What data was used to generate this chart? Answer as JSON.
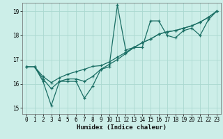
{
  "title": "",
  "xlabel": "Humidex (Indice chaleur)",
  "bg_color": "#cceee8",
  "grid_color": "#aad8d0",
  "line_color": "#1a6e64",
  "xlim": [
    -0.5,
    23.5
  ],
  "ylim": [
    14.75,
    19.35
  ],
  "xticks": [
    0,
    1,
    2,
    3,
    4,
    5,
    6,
    7,
    8,
    9,
    10,
    11,
    12,
    13,
    14,
    15,
    16,
    17,
    18,
    19,
    20,
    21,
    22,
    23
  ],
  "yticks": [
    15,
    16,
    17,
    18,
    19
  ],
  "line1_x": [
    0,
    1,
    2,
    3,
    4,
    5,
    6,
    7,
    8,
    9,
    10,
    11,
    12,
    13,
    14,
    15,
    16,
    17,
    18,
    19,
    20,
    21,
    22,
    23
  ],
  "line1_y": [
    16.7,
    16.7,
    16.1,
    15.1,
    16.1,
    16.1,
    16.1,
    15.4,
    15.9,
    16.6,
    16.7,
    19.25,
    17.4,
    17.5,
    17.5,
    18.6,
    18.6,
    18.0,
    17.9,
    18.2,
    18.3,
    18.0,
    18.65,
    19.0
  ],
  "line2_x": [
    0,
    1,
    2,
    3,
    4,
    5,
    6,
    7,
    8,
    9,
    10,
    11,
    12,
    13,
    14,
    15,
    16,
    17,
    18,
    19,
    20,
    21,
    22,
    23
  ],
  "line2_y": [
    16.7,
    16.7,
    16.3,
    16.05,
    16.25,
    16.4,
    16.5,
    16.6,
    16.72,
    16.75,
    16.9,
    17.1,
    17.3,
    17.5,
    17.7,
    17.85,
    18.05,
    18.15,
    18.2,
    18.3,
    18.4,
    18.55,
    18.75,
    19.0
  ],
  "line3_x": [
    0,
    1,
    2,
    3,
    4,
    5,
    6,
    7,
    8,
    9,
    10,
    11,
    12,
    13,
    14,
    15,
    16,
    17,
    18,
    19,
    20,
    21,
    22,
    23
  ],
  "line3_y": [
    16.7,
    16.7,
    16.2,
    15.8,
    16.1,
    16.2,
    16.2,
    16.1,
    16.3,
    16.6,
    16.8,
    17.0,
    17.25,
    17.5,
    17.7,
    17.85,
    18.05,
    18.15,
    18.2,
    18.3,
    18.4,
    18.55,
    18.75,
    19.0
  ]
}
